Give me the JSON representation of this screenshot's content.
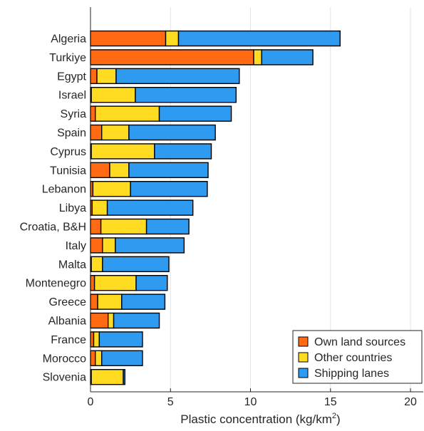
{
  "chart_data": {
    "type": "bar",
    "orientation": "horizontal",
    "stacked": true,
    "xlabel_main": "Plastic concentration (kg/km",
    "xlabel_sup": "2",
    "xlabel_end": ")",
    "xlim": [
      0,
      20.8
    ],
    "xticks": [
      "0",
      "5",
      "10",
      "15",
      "20"
    ],
    "xtick_values": [
      0,
      5,
      10,
      15,
      20
    ],
    "grid": true,
    "legend_placement": "bottom-right",
    "categories": [
      "Algeria",
      "Turkiye",
      "Egypt",
      "Israel",
      "Syria",
      "Spain",
      "Cyprus",
      "Tunisia",
      "Lebanon",
      "Libya",
      "Croatia, B&H",
      "Italy",
      "Malta",
      "Montenegro",
      "Greece",
      "Albania",
      "France",
      "Morocco",
      "Slovenia"
    ],
    "series": [
      {
        "name": "Own land sources",
        "color": "#ff6a13",
        "values": [
          4.7,
          10.2,
          0.4,
          0.05,
          0.3,
          0.7,
          0.05,
          1.2,
          0.15,
          0.1,
          0.65,
          0.75,
          0.05,
          0.25,
          0.45,
          1.1,
          0.2,
          0.3,
          0.05
        ]
      },
      {
        "name": "Other countries",
        "color": "#ffdb22",
        "values": [
          0.8,
          0.5,
          1.2,
          2.75,
          4.0,
          1.7,
          3.95,
          1.2,
          2.35,
          0.95,
          2.85,
          0.8,
          0.7,
          2.6,
          1.5,
          0.35,
          0.35,
          0.4,
          2.0
        ]
      },
      {
        "name": "Shipping lanes",
        "color": "#2e9bf0",
        "values": [
          10.1,
          3.2,
          7.7,
          6.3,
          4.5,
          5.4,
          3.55,
          4.95,
          4.8,
          5.35,
          2.65,
          4.3,
          4.15,
          1.95,
          2.7,
          2.85,
          2.7,
          2.55,
          0.1
        ]
      }
    ]
  }
}
